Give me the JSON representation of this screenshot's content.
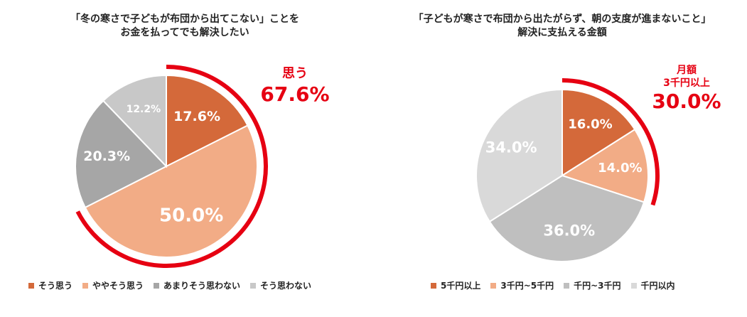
{
  "chart_data": [
    {
      "type": "pie",
      "title_lines": [
        "「冬の寒さで子どもが布団から出てこない」ことを",
        "お金を払ってでも解決したい"
      ],
      "categories": [
        "そう思う",
        "ややそう思う",
        "あまりそう思わない",
        "そう思わない"
      ],
      "values": [
        17.6,
        50.0,
        20.3,
        12.2
      ],
      "value_labels": [
        "17.6%",
        "50.0%",
        "20.3%",
        "12.2%"
      ],
      "colors": [
        "#d4693a",
        "#f2ac86",
        "#a6a6a6",
        "#c8c8c8"
      ],
      "callout": {
        "label": "思う",
        "value": "67.6%",
        "color": "#e60012"
      },
      "legend_position": "bottom"
    },
    {
      "type": "pie",
      "title_lines": [
        "「子どもが寒さで布団から出たがらず、朝の支度が進まないこと」",
        "解決に支払える金額"
      ],
      "categories": [
        "5千円以上",
        "3千円~5千円",
        "千円~3千円",
        "千円以内"
      ],
      "values": [
        16.0,
        14.0,
        36.0,
        34.0
      ],
      "value_labels": [
        "16.0%",
        "14.0%",
        "36.0%",
        "34.0%"
      ],
      "colors": [
        "#d4693a",
        "#f2ac86",
        "#bfbfbf",
        "#d9d9d9"
      ],
      "callout": {
        "label_lines": [
          "月額",
          "3千円以上"
        ],
        "value": "30.0%",
        "color": "#e60012"
      },
      "legend_position": "bottom"
    }
  ]
}
